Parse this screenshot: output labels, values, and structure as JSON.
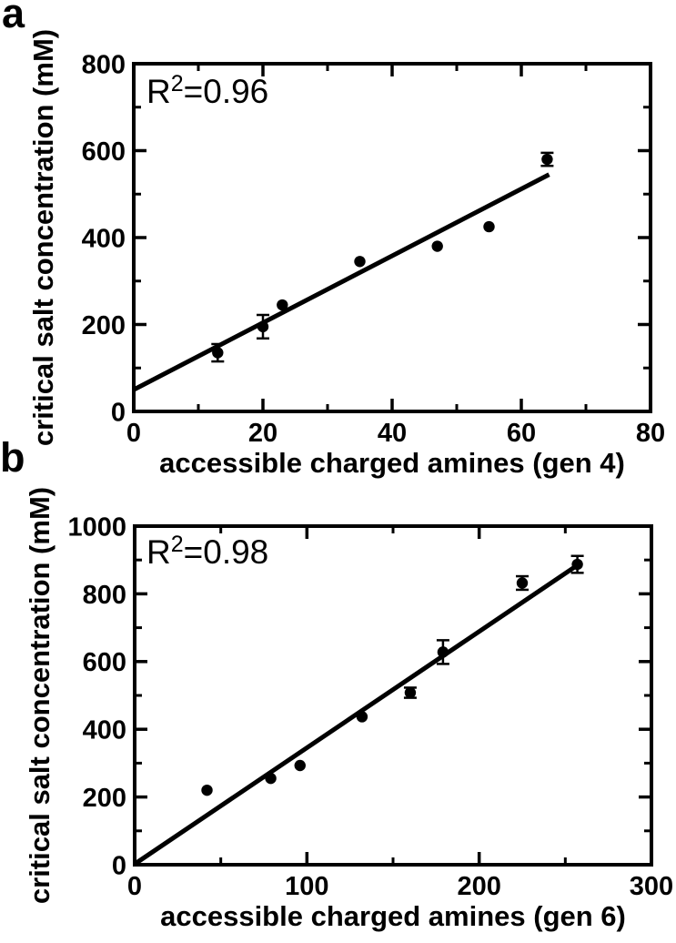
{
  "figure": {
    "background": "#ffffff",
    "ink_color": "#000000",
    "panel_labels": [
      "a",
      "b"
    ]
  },
  "chart_data": [
    {
      "type": "scatter",
      "panel": "a",
      "annotation": {
        "base": "R",
        "exponent": "2",
        "value": "=0.96"
      },
      "xlabel": "accessible charged amines (gen 4)",
      "ylabel": "critical salt concentration (mM)",
      "xlim": [
        0,
        80
      ],
      "ylim": [
        0,
        800
      ],
      "x_major_ticks": [
        0,
        20,
        40,
        60,
        80
      ],
      "x_minor_ticks": [
        10,
        30,
        50,
        70
      ],
      "y_major_ticks": [
        0,
        200,
        400,
        600,
        800
      ],
      "y_minor_ticks": [
        100,
        300,
        500,
        700
      ],
      "grid": false,
      "legend": "none",
      "marker": "filled-circle",
      "marker_color": "#000000",
      "line_color": "#000000",
      "points": [
        {
          "x": 13,
          "y": 135,
          "err": 20
        },
        {
          "x": 20,
          "y": 195,
          "err": 27
        },
        {
          "x": 23,
          "y": 245,
          "err": 0
        },
        {
          "x": 35,
          "y": 345,
          "err": 0
        },
        {
          "x": 47,
          "y": 380,
          "err": 0
        },
        {
          "x": 55,
          "y": 425,
          "err": 0
        },
        {
          "x": 64,
          "y": 580,
          "err": 15
        }
      ],
      "fit_line": {
        "x1": 0,
        "y1": 50,
        "x2": 64.3,
        "y2": 545
      }
    },
    {
      "type": "scatter",
      "panel": "b",
      "annotation": {
        "base": "R",
        "exponent": "2",
        "value": "=0.98"
      },
      "xlabel": "accessible charged amines (gen 6)",
      "ylabel": "critical salt concentration (mM)",
      "xlim": [
        0,
        300
      ],
      "ylim": [
        0,
        1000
      ],
      "x_major_ticks": [
        0,
        100,
        200,
        300
      ],
      "x_minor_ticks": [
        50,
        150,
        250
      ],
      "y_major_ticks": [
        0,
        200,
        400,
        600,
        800,
        1000
      ],
      "y_minor_ticks": [
        100,
        300,
        500,
        700,
        900
      ],
      "grid": false,
      "legend": "none",
      "marker": "filled-circle",
      "marker_color": "#000000",
      "line_color": "#000000",
      "points": [
        {
          "x": 42,
          "y": 220,
          "err": 0
        },
        {
          "x": 79,
          "y": 255,
          "err": 0
        },
        {
          "x": 96,
          "y": 293,
          "err": 0
        },
        {
          "x": 132,
          "y": 437,
          "err": 0
        },
        {
          "x": 160,
          "y": 508,
          "err": 15
        },
        {
          "x": 179,
          "y": 628,
          "err": 35
        },
        {
          "x": 225,
          "y": 832,
          "err": 20
        },
        {
          "x": 257,
          "y": 887,
          "err": 25
        }
      ],
      "fit_line": {
        "x1": 0,
        "y1": 2,
        "x2": 258,
        "y2": 888
      }
    }
  ]
}
